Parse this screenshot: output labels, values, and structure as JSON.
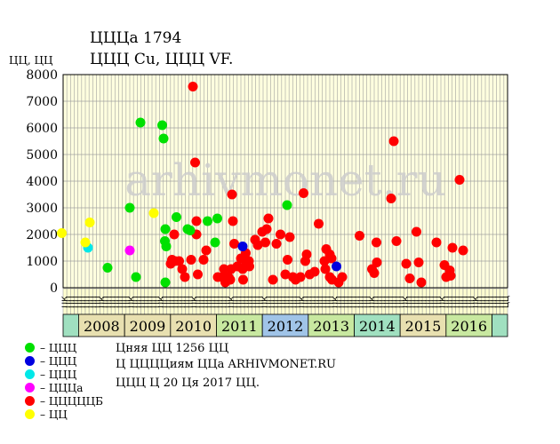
{
  "header": {
    "title": "ЦЦЦа 1794",
    "subtitle": "ЦЦЦ Cu, ЦЦЦ VF.",
    "yunit": "ЦЦ, ЦЦ"
  },
  "watermark": "arhivmonet.ru",
  "legend": [
    {
      "label": "– ЦЦЦ",
      "color": "#00e000"
    },
    {
      "label": "– ЦЦЦ",
      "color": "#0000e0"
    },
    {
      "label": "– ЦЦЦ",
      "color": "#00e8e8"
    },
    {
      "label": "– ЦЦЦа",
      "color": "#ff00ff"
    },
    {
      "label": "– ЦЦЦЦЦБ",
      "color": "#ff0000"
    },
    {
      "label": "– ЦЦ",
      "color": "#ffff00"
    }
  ],
  "notes": [
    "Цняя ЦЦ 1256 ЦЦ",
    "Ц ЦЦЦЦиям ЦЦа ARHIVMONET.RU",
    "ЦЦЦ Ц 20 Ця 2017 ЦЦ."
  ],
  "colors": {
    "plot_bg": "#ffffdf",
    "grid": "#a0a0a0",
    "month_row": "#ffffd0",
    "teal": "#a0e0c0",
    "blue": "#a0c4e8",
    "green": "#c8e8a0",
    "tan": "#e8e0b0"
  },
  "chart_data": {
    "type": "scatter",
    "ylim": [
      0,
      8000
    ],
    "yticks": [
      0,
      1000,
      2000,
      3000,
      4000,
      5000,
      6000,
      7000,
      8000
    ],
    "xrange": [
      2007.0,
      2017.0
    ],
    "grid": true,
    "years": [
      {
        "label": "2008",
        "color": "tan"
      },
      {
        "label": "2009",
        "color": "tan"
      },
      {
        "label": "2010",
        "color": "tan"
      },
      {
        "label": "2011",
        "color": "green"
      },
      {
        "label": "2012",
        "color": "blue"
      },
      {
        "label": "2013",
        "color": "green"
      },
      {
        "label": "2014",
        "color": "teal"
      },
      {
        "label": "2015",
        "color": "tan"
      },
      {
        "label": "2016",
        "color": "green"
      }
    ],
    "first_cell_color": "teal",
    "last_cell_color": "teal",
    "months": [
      "ЦК",
      "ЦЦ",
      "ЦЦ",
      "ЦЦ",
      "ЦЦ",
      "ЦЦ",
      "ЦЦ",
      "ЦЦ",
      "ЦЦ",
      "ЦЦ",
      "ЦК",
      "ЦЦ",
      "ЦЦ",
      "ЦЦ",
      "ЦЦ",
      "ЦЦ",
      "ЦЦ",
      "ЦЦ",
      "ЦК",
      "ЦЦ",
      "ЦЦ",
      "ЦЦ",
      "ЦЦ",
      "ЦЦ",
      "ЦЦ",
      "ЦЦ",
      "ЦК",
      "ЦЦ",
      "ЦЦ",
      "ЦЦ",
      "ЦЦ",
      "ЦЦ",
      "ЦЦ",
      "ЦЦ",
      "ЦЦ",
      "ЦК",
      "ЦЦ",
      "ЦЦ",
      "ЦЦ",
      "ЦЦ",
      "ЦЦ",
      "ЦЦ",
      "ЦЦ",
      "ЦЦ",
      "ЦЦ",
      "ЦК",
      "ЦЦ",
      "ЦЦ",
      "ЦЦ",
      "ЦЦ",
      "ЦЦ",
      "ЦЦ",
      "ЦЦ",
      "ЦЦ",
      "ЦК",
      "ЦЦ",
      "ЦЦ",
      "ЦЦ",
      "ЦЦ",
      "ЦЦ",
      "ЦЦ",
      "ЦЦ",
      "ЦЦ",
      "ЦЦ",
      "ЦК",
      "ЦЦ",
      "ЦЦ",
      "ЦЦ",
      "ЦЦ",
      "ЦЦ",
      "ЦЦ",
      "ЦЦ",
      "ЦЦ",
      "ЦК",
      "ЦЦ",
      "ЦЦ",
      "ЦЦ",
      "ЦЦ",
      "ЦЦ",
      "ЦЦ",
      "ЦЦ",
      "ЦЦ",
      "ЦЦ",
      "ЦК",
      "ЦЦ",
      "ЦЦ",
      "ЦЦ",
      "ЦЦ",
      "ЦЦ",
      "ЦЦ",
      "ЦЦ",
      "ЦЦ",
      "ЦК",
      "ЦЦ",
      "ЦЦ",
      "ЦЦ",
      "ЦЦ",
      "ЦЦ",
      "ЦЦ",
      "ЦЦ",
      "ЦЦ",
      "ЦЦ",
      "ЦК",
      "ЦЦ",
      "ЦЦ",
      "ЦЦ",
      "ЦЦ",
      "ЦЦ",
      "ЦЦ",
      "ЦЦ",
      "ЦЦ",
      "ЦК",
      "ЦЦ",
      "ЦЦ",
      "ЦЦ",
      "ЦЦ",
      "ЦЦ",
      "ЦЦ",
      "ЦЦ",
      "ЦЦ"
    ],
    "series": [
      {
        "name": "– ЦЦЦЦЦБ",
        "color": "#ff0000",
        "points": [
          [
            2009.5,
            2000
          ],
          [
            2009.52,
            1000
          ],
          [
            2009.42,
            900
          ],
          [
            2009.45,
            1050
          ],
          [
            2009.61,
            1000
          ],
          [
            2009.68,
            700
          ],
          [
            2009.74,
            400
          ],
          [
            2009.88,
            1050
          ],
          [
            2009.92,
            7550
          ],
          [
            2009.97,
            4700
          ],
          [
            2010.0,
            2500
          ],
          [
            2010.0,
            2000
          ],
          [
            2010.03,
            500
          ],
          [
            2010.16,
            1050
          ],
          [
            2010.22,
            1400
          ],
          [
            2010.48,
            400
          ],
          [
            2010.57,
            400
          ],
          [
            2010.62,
            700
          ],
          [
            2010.65,
            200
          ],
          [
            2010.72,
            400
          ],
          [
            2010.76,
            300
          ],
          [
            2010.78,
            700
          ],
          [
            2010.8,
            3500
          ],
          [
            2010.82,
            2500
          ],
          [
            2010.85,
            1650
          ],
          [
            2010.92,
            800
          ],
          [
            2011.0,
            1100
          ],
          [
            2011.04,
            700
          ],
          [
            2011.05,
            300
          ],
          [
            2011.11,
            1300
          ],
          [
            2011.12,
            900
          ],
          [
            2011.18,
            1000
          ],
          [
            2011.19,
            800
          ],
          [
            2011.32,
            1800
          ],
          [
            2011.38,
            1600
          ],
          [
            2011.48,
            2100
          ],
          [
            2011.55,
            1700
          ],
          [
            2011.58,
            2200
          ],
          [
            2011.62,
            2600
          ],
          [
            2011.72,
            300
          ],
          [
            2011.8,
            1650
          ],
          [
            2011.89,
            2000
          ],
          [
            2012.0,
            500
          ],
          [
            2012.05,
            1050
          ],
          [
            2012.1,
            1900
          ],
          [
            2012.17,
            400
          ],
          [
            2012.23,
            300
          ],
          [
            2012.34,
            400
          ],
          [
            2012.41,
            3550
          ],
          [
            2012.45,
            1000
          ],
          [
            2012.48,
            1250
          ],
          [
            2012.55,
            500
          ],
          [
            2012.66,
            600
          ],
          [
            2012.75,
            2400
          ],
          [
            2012.88,
            1000
          ],
          [
            2012.9,
            700
          ],
          [
            2012.92,
            1450
          ],
          [
            2013.0,
            400
          ],
          [
            2013.0,
            1250
          ],
          [
            2013.04,
            1100
          ],
          [
            2013.05,
            300
          ],
          [
            2013.2,
            200
          ],
          [
            2013.28,
            400
          ],
          [
            2013.67,
            1950
          ],
          [
            2013.95,
            700
          ],
          [
            2014.0,
            550
          ],
          [
            2014.05,
            1700
          ],
          [
            2014.06,
            950
          ],
          [
            2014.38,
            3350
          ],
          [
            2014.44,
            5500
          ],
          [
            2014.5,
            1750
          ],
          [
            2014.72,
            900
          ],
          [
            2014.8,
            350
          ],
          [
            2014.95,
            2100
          ],
          [
            2015.0,
            950
          ],
          [
            2015.06,
            200
          ],
          [
            2015.4,
            1700
          ],
          [
            2015.58,
            850
          ],
          [
            2015.62,
            400
          ],
          [
            2015.7,
            650
          ],
          [
            2015.72,
            450
          ],
          [
            2015.76,
            1500
          ],
          [
            2015.92,
            4050
          ],
          [
            2016.0,
            1400
          ]
        ]
      },
      {
        "name": "– ЦЦЦ",
        "color": "#00e000",
        "points": [
          [
            2008.0,
            750
          ],
          [
            2008.5,
            3000
          ],
          [
            2008.64,
            400
          ],
          [
            2008.74,
            6200
          ],
          [
            2009.23,
            6100
          ],
          [
            2009.26,
            5600
          ],
          [
            2009.29,
            1750
          ],
          [
            2009.3,
            2200
          ],
          [
            2009.32,
            1550
          ],
          [
            2009.3,
            200
          ],
          [
            2009.55,
            2650
          ],
          [
            2009.8,
            2200
          ],
          [
            2009.86,
            2150
          ],
          [
            2010.25,
            2500
          ],
          [
            2010.42,
            1700
          ],
          [
            2010.47,
            2600
          ],
          [
            2012.04,
            3100
          ]
        ]
      },
      {
        "name": "– ЦЦЦ",
        "color": "#0000e0",
        "points": [
          [
            2011.04,
            1550
          ],
          [
            2013.15,
            800
          ]
        ]
      },
      {
        "name": "– ЦЦЦ",
        "color": "#00e8e8",
        "points": [
          [
            2007.56,
            1500
          ]
        ]
      },
      {
        "name": "– ЦЦЦа",
        "color": "#ff00ff",
        "points": [
          [
            2008.5,
            1400
          ]
        ]
      },
      {
        "name": "– ЦЦ",
        "color": "#ffff00",
        "points": [
          [
            2006.97,
            2050
          ],
          [
            2007.5,
            1700
          ],
          [
            2007.6,
            2450
          ],
          [
            2009.04,
            2800
          ]
        ]
      }
    ]
  }
}
